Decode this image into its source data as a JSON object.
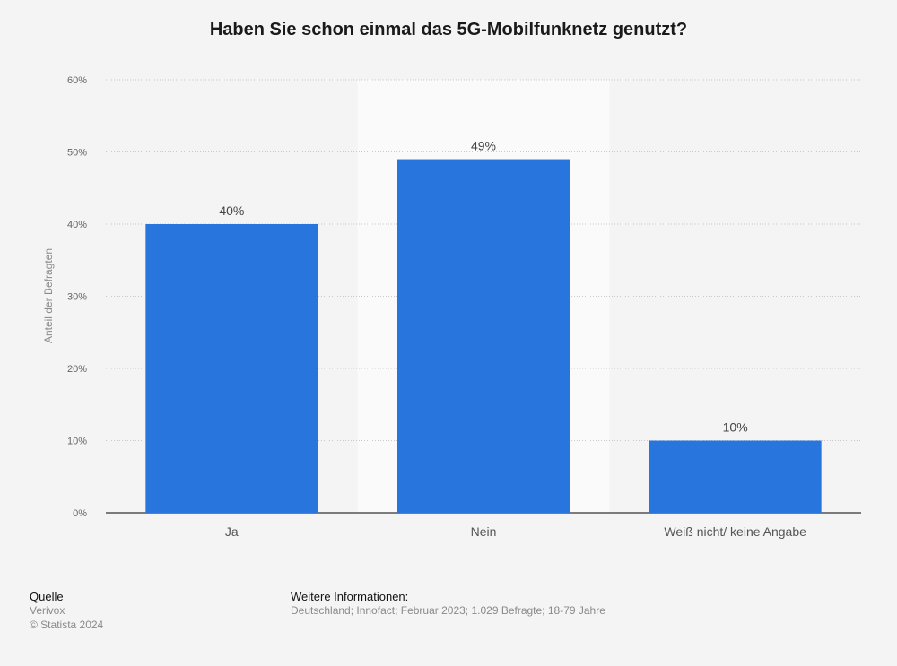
{
  "chart_data": {
    "type": "bar",
    "title": "Haben Sie schon einmal das 5G-Mobilfunknetz genutzt?",
    "ylabel": "Anteil der Befragten",
    "xlabel": "",
    "categories": [
      "Ja",
      "Nein",
      "Weiß nicht/ keine Angabe"
    ],
    "values": [
      40,
      49,
      10
    ],
    "value_labels": [
      "40%",
      "49%",
      "10%"
    ],
    "ylim": [
      0,
      60
    ],
    "yticks": [
      0,
      10,
      20,
      30,
      40,
      50,
      60
    ],
    "ytick_labels": [
      "0%",
      "10%",
      "20%",
      "30%",
      "40%",
      "50%",
      "60%"
    ],
    "highlighted_category": "Nein",
    "grid": true,
    "bar_color": "#2876dd",
    "highlight_background": "#fafafa"
  },
  "footer": {
    "source_heading": "Quelle",
    "source_name": "Verivox",
    "copyright": "© Statista 2024",
    "info_heading": "Weitere Informationen:",
    "info_text": "Deutschland; Innofact; Februar 2023; 1.029 Befragte; 18-79 Jahre"
  }
}
